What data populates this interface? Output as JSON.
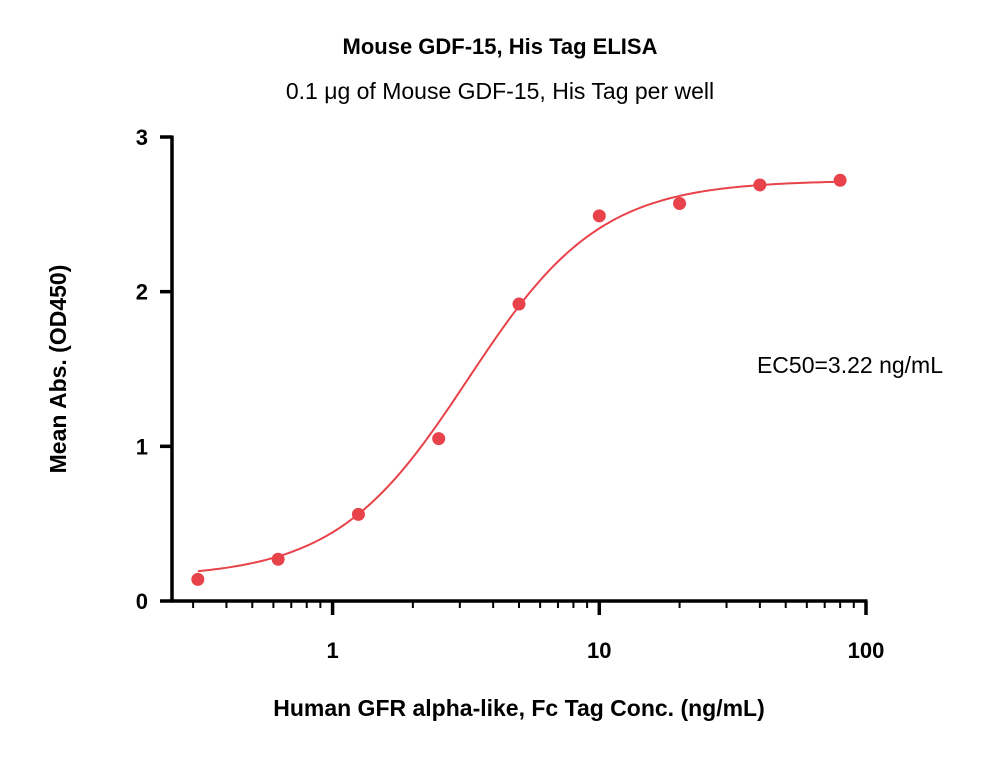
{
  "chart_data": {
    "type": "scatter",
    "title": "Mouse GDF-15, His Tag ELISA",
    "subtitle": "0.1 μg of Mouse GDF-15, His Tag per well",
    "xlabel": "Human GFR alpha-like, Fc Tag Conc. (ng/mL)",
    "ylabel": "Mean Abs. (OD450)",
    "x_scale": "log",
    "xlim": [
      0.25,
      100
    ],
    "ylim": [
      0,
      3
    ],
    "x_ticks": [
      1,
      10,
      100
    ],
    "x_tick_labels": [
      "1",
      "10",
      "100"
    ],
    "y_ticks": [
      0,
      1,
      2,
      3
    ],
    "y_tick_labels": [
      "0",
      "1",
      "2",
      "3"
    ],
    "grid": false,
    "legend": "none",
    "colors": {
      "series": "#e8424a",
      "axis": "#000000"
    },
    "series": [
      {
        "x": [
          0.3125,
          0.625,
          1.25,
          2.5,
          5,
          10,
          20,
          40,
          80
        ],
        "y": [
          0.14,
          0.27,
          0.56,
          1.05,
          1.92,
          2.49,
          2.57,
          2.69,
          2.72
        ]
      }
    ],
    "fit": {
      "model": "4PL",
      "bottom": 0.15,
      "top": 2.72,
      "ec50": 3.22,
      "hill": 1.75
    },
    "annotations": [
      {
        "text": "EC50=3.22 ng/mL"
      }
    ]
  }
}
